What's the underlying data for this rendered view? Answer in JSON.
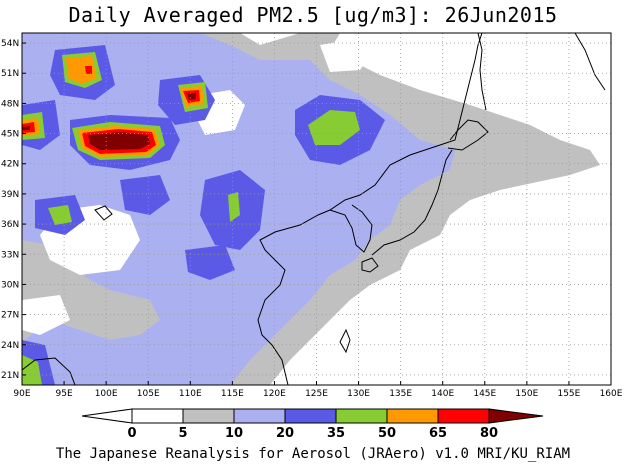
{
  "title": "Daily Averaged PM2.5 [ug/m3]: 26Jun2015",
  "footer": "The Japanese Reanalysis for Aerosol (JRAero) v1.0 MRI/KU_RIAM",
  "map": {
    "lon_range": [
      90,
      160
    ],
    "lat_range": [
      20,
      55
    ],
    "lon_ticks": [
      "90E",
      "95E",
      "100E",
      "105E",
      "110E",
      "115E",
      "120E",
      "125E",
      "130E",
      "135E",
      "140E",
      "145E",
      "150E",
      "155E",
      "160E"
    ],
    "lat_ticks": [
      "54N",
      "51N",
      "48N",
      "45N",
      "42N",
      "39N",
      "36N",
      "33N",
      "30N",
      "27N",
      "24N",
      "21N"
    ],
    "gridlines": true
  },
  "colorbar": {
    "labels": [
      "0",
      "5",
      "10",
      "20",
      "35",
      "50",
      "65",
      "80"
    ],
    "colors": [
      "#ffffff",
      "#c0c0c0",
      "#aab0f0",
      "#5a5ae6",
      "#88cc33",
      "#ff9900",
      "#ff0000",
      "#800000"
    ],
    "arrow_colors": {
      "low": "#ffffff",
      "high": "#800000"
    }
  }
}
